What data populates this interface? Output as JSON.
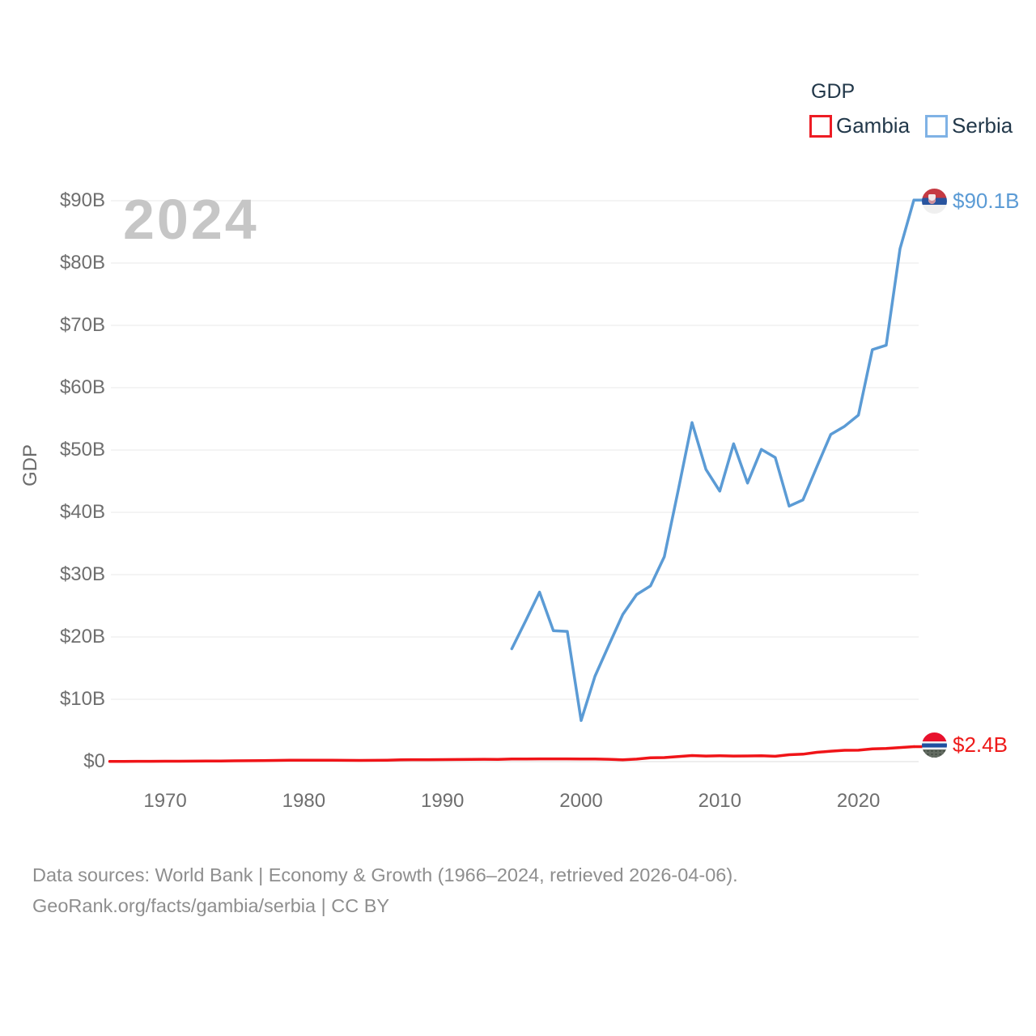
{
  "watermark": "2024",
  "legend": {
    "title": "GDP",
    "items": [
      {
        "label": "Gambia",
        "color": "#ed1c24"
      },
      {
        "label": "Serbia",
        "color": "#7fb2e5"
      }
    ]
  },
  "y_axis": {
    "title": "GDP",
    "ticks": [
      {
        "label": "$0",
        "value": 0
      },
      {
        "label": "$10B",
        "value": 10
      },
      {
        "label": "$20B",
        "value": 20
      },
      {
        "label": "$30B",
        "value": 30
      },
      {
        "label": "$40B",
        "value": 40
      },
      {
        "label": "$50B",
        "value": 50
      },
      {
        "label": "$60B",
        "value": 60
      },
      {
        "label": "$70B",
        "value": 70
      },
      {
        "label": "$80B",
        "value": 80
      },
      {
        "label": "$90B",
        "value": 90
      }
    ]
  },
  "x_axis": {
    "ticks": [
      {
        "label": "1970",
        "value": 1970
      },
      {
        "label": "1980",
        "value": 1980
      },
      {
        "label": "1990",
        "value": 1990
      },
      {
        "label": "2000",
        "value": 2000
      },
      {
        "label": "2010",
        "value": 2010
      },
      {
        "label": "2020",
        "value": 2020
      }
    ]
  },
  "end_labels": {
    "serbia": {
      "text": "$90.1B",
      "flag": "serbia-flag-icon"
    },
    "gambia": {
      "text": "$2.4B",
      "flag": "gambia-flag-icon"
    }
  },
  "footer": {
    "line1": "Data sources: World Bank | Economy & Growth (1966–2024, retrieved 2026-04-06).",
    "line2": "GeoRank.org/facts/gambia/serbia | CC BY"
  },
  "colors": {
    "gambia_line": "#f01418",
    "serbia_line": "#5b9bd5",
    "grid": "#e9e9e9",
    "axis_zero": "#dcdcdc",
    "tick_text": "#6e6e6e",
    "legend_text": "#22384a",
    "watermark_text": "#c6c6c6",
    "footer_text": "#8e8e8e"
  },
  "chart_data": {
    "type": "line",
    "title": "GDP",
    "xlabel": "",
    "ylabel": "GDP",
    "units": "billions USD",
    "x_range": [
      1966,
      2024
    ],
    "ylim": [
      0,
      95
    ],
    "grid": true,
    "legend_position": "top-right",
    "series": [
      {
        "name": "Gambia",
        "color": "#f01418",
        "points": [
          [
            1966,
            0.04
          ],
          [
            1967,
            0.04
          ],
          [
            1968,
            0.05
          ],
          [
            1969,
            0.05
          ],
          [
            1970,
            0.06
          ],
          [
            1971,
            0.07
          ],
          [
            1972,
            0.08
          ],
          [
            1973,
            0.09
          ],
          [
            1974,
            0.11
          ],
          [
            1975,
            0.13
          ],
          [
            1976,
            0.14
          ],
          [
            1977,
            0.16
          ],
          [
            1978,
            0.19
          ],
          [
            1979,
            0.22
          ],
          [
            1980,
            0.24
          ],
          [
            1981,
            0.24
          ],
          [
            1982,
            0.22
          ],
          [
            1983,
            0.21
          ],
          [
            1984,
            0.19
          ],
          [
            1985,
            0.21
          ],
          [
            1986,
            0.23
          ],
          [
            1987,
            0.28
          ],
          [
            1988,
            0.31
          ],
          [
            1989,
            0.31
          ],
          [
            1990,
            0.32
          ],
          [
            1991,
            0.34
          ],
          [
            1992,
            0.37
          ],
          [
            1993,
            0.38
          ],
          [
            1994,
            0.36
          ],
          [
            1995,
            0.41
          ],
          [
            1996,
            0.43
          ],
          [
            1997,
            0.44
          ],
          [
            1998,
            0.44
          ],
          [
            1999,
            0.44
          ],
          [
            2000,
            0.42
          ],
          [
            2001,
            0.42
          ],
          [
            2002,
            0.38
          ],
          [
            2003,
            0.3
          ],
          [
            2004,
            0.4
          ],
          [
            2005,
            0.62
          ],
          [
            2006,
            0.65
          ],
          [
            2007,
            0.8
          ],
          [
            2008,
            0.97
          ],
          [
            2009,
            0.9
          ],
          [
            2010,
            0.95
          ],
          [
            2011,
            0.9
          ],
          [
            2012,
            0.91
          ],
          [
            2013,
            0.93
          ],
          [
            2014,
            0.86
          ],
          [
            2015,
            1.1
          ],
          [
            2016,
            1.19
          ],
          [
            2017,
            1.5
          ],
          [
            2018,
            1.67
          ],
          [
            2019,
            1.82
          ],
          [
            2020,
            1.83
          ],
          [
            2021,
            2.04
          ],
          [
            2022,
            2.1
          ],
          [
            2023,
            2.26
          ],
          [
            2024,
            2.4
          ]
        ]
      },
      {
        "name": "Serbia",
        "color": "#5b9bd5",
        "points": [
          [
            1995,
            18.1
          ],
          [
            1996,
            22.6
          ],
          [
            1997,
            27.2
          ],
          [
            1998,
            21.0
          ],
          [
            1999,
            20.9
          ],
          [
            2000,
            6.6
          ],
          [
            2001,
            13.7
          ],
          [
            2002,
            18.7
          ],
          [
            2003,
            23.6
          ],
          [
            2004,
            26.8
          ],
          [
            2005,
            28.2
          ],
          [
            2006,
            32.9
          ],
          [
            2007,
            43.5
          ],
          [
            2008,
            54.4
          ],
          [
            2009,
            46.9
          ],
          [
            2010,
            43.4
          ],
          [
            2011,
            51.0
          ],
          [
            2012,
            44.7
          ],
          [
            2013,
            50.1
          ],
          [
            2014,
            48.8
          ],
          [
            2015,
            41.0
          ],
          [
            2016,
            42.0
          ],
          [
            2017,
            47.3
          ],
          [
            2018,
            52.5
          ],
          [
            2019,
            53.8
          ],
          [
            2020,
            55.6
          ],
          [
            2021,
            66.1
          ],
          [
            2022,
            66.8
          ],
          [
            2023,
            82.3
          ],
          [
            2024,
            90.1
          ]
        ]
      }
    ]
  }
}
